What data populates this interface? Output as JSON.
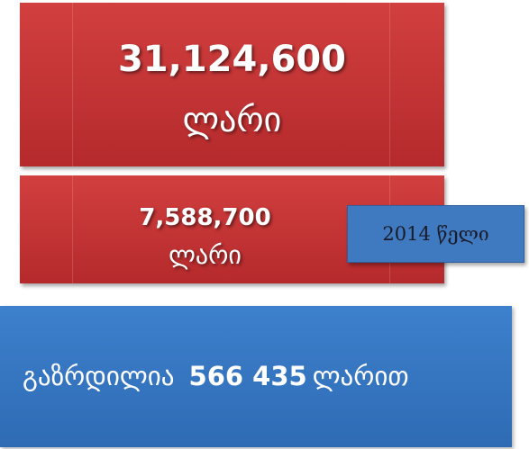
{
  "boxes": [
    {
      "amount": "31,124,600",
      "unit": "ლარი"
    },
    {
      "amount": "7,588,700",
      "unit": "ლარი"
    }
  ],
  "year_label": "2014 წელი",
  "summary": {
    "prefix": "გაზრდილია",
    "amount": "566 435",
    "suffix": "ლარით"
  }
}
